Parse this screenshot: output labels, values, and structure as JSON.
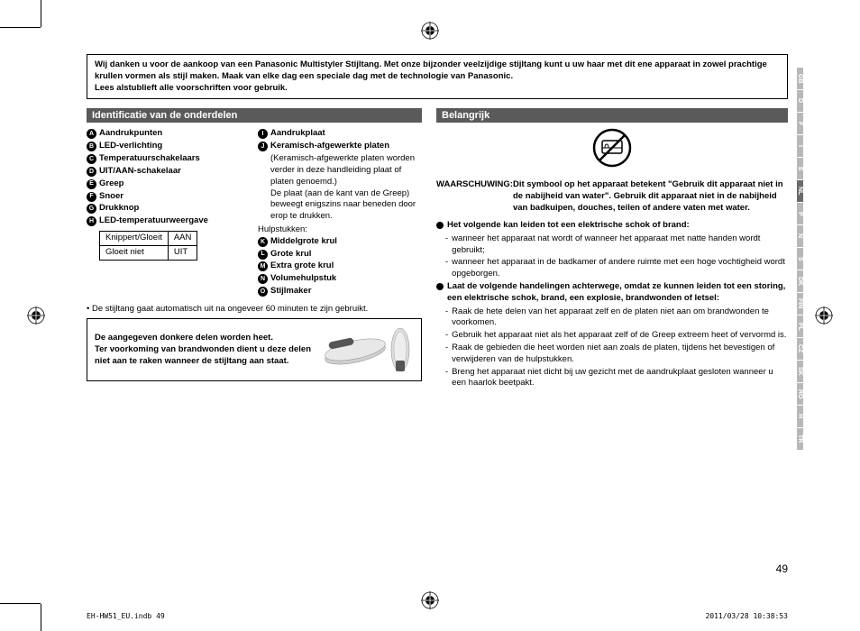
{
  "intro": "Wij danken u voor de aankoop van een Panasonic Multistyler Stijltang. Met onze bijzonder veelzijdige stijltang kunt u uw haar met dit ene apparaat in zowel prachtige krullen vormen als stijl maken. Maak van elke dag een speciale dag met de technologie van Panasonic.\nLees alstublieft alle voorschriften voor gebruik.",
  "section_left_title": "Identificatie van de onderdelen",
  "section_right_title": "Belangrijk",
  "parts_left": [
    {
      "l": "A",
      "t": "Aandrukpunten"
    },
    {
      "l": "B",
      "t": "LED-verlichting"
    },
    {
      "l": "C",
      "t": "Temperatuurschakelaars"
    },
    {
      "l": "D",
      "t": "UIT/AAN-schakelaar"
    },
    {
      "l": "E",
      "t": "Greep"
    },
    {
      "l": "F",
      "t": "Snoer"
    },
    {
      "l": "G",
      "t": "Drukknop"
    },
    {
      "l": "H",
      "t": "LED-temperatuurweergave"
    }
  ],
  "led_table": [
    [
      "Knippert/Gloeit",
      "AAN"
    ],
    [
      "Gloeit niet",
      "UIT"
    ]
  ],
  "parts_right_top": [
    {
      "l": "I",
      "t": "Aandrukplaat"
    },
    {
      "l": "J",
      "t": "Keramisch-afgewerkte platen"
    }
  ],
  "parts_right_sub1": "(Keramisch-afgewerkte platen worden verder in deze handleiding plaat of platen genoemd.)",
  "parts_right_sub2": "De plaat (aan de kant van de Greep) beweegt enigszins naar beneden door erop te drukken.",
  "hulp_label": "Hulpstukken:",
  "parts_right_bottom": [
    {
      "l": "K",
      "t": "Middelgrote krul"
    },
    {
      "l": "L",
      "t": "Grote krul"
    },
    {
      "l": "M",
      "t": "Extra grote krul"
    },
    {
      "l": "N",
      "t": "Volumehulpstuk"
    },
    {
      "l": "O",
      "t": "Stijlmaker"
    }
  ],
  "note": "• De stijltang gaat automatisch uit na ongeveer 60 minuten te zijn gebruikt.",
  "heat_text": "De aangegeven donkere delen worden heet.\nTer voorkoming van brandwonden dient u deze delen niet aan te raken wanneer de stijltang aan staat.",
  "warn_label": "WAARSCHUWING:",
  "warn_body": "Dit symbool op het apparaat betekent \"Gebruik dit apparaat niet in de nabijheid van water\". Gebruik dit apparaat niet in de nabijheid van badkuipen, douches, teilen of andere vaten met water.",
  "bullets": [
    {
      "head": "Het volgende kan leiden tot een elektrische schok of brand:",
      "dashes": [
        "wanneer het apparaat nat wordt of wanneer het apparaat met natte handen wordt gebruikt;",
        "wanneer het apparaat in de badkamer of andere ruimte met een hoge vochtigheid wordt opgeborgen."
      ]
    },
    {
      "head": "Laat de volgende handelingen achterwege, omdat ze kunnen leiden tot een storing, een elektrische schok, brand, een explosie, brandwonden of letsel:",
      "dashes": [
        "Raak de hete delen van het apparaat zelf en de platen niet aan om brandwonden te voorkomen.",
        "Gebruik het apparaat niet als het apparaat zelf of de Greep extreem heet of vervormd is.",
        "Raak de gebieden die heet worden niet aan zoals de platen, tijdens het bevestigen of verwijderen van de hulpstukken.",
        "Breng het apparaat niet dicht bij uw gezicht met de aandrukplaat gesloten wanneer u een haarlok beetpakt."
      ]
    }
  ],
  "page_num": "49",
  "lang_tabs": [
    "GB",
    "D",
    "F",
    "I",
    "E",
    "NL",
    "P",
    "N",
    "S",
    "DK",
    "FIN",
    "PL",
    "CZ",
    "SK",
    "RO",
    "H",
    "TR"
  ],
  "active_lang": "NL",
  "footer_left": "EH-HW51_EU.indb   49",
  "footer_right": "2011/03/28   10:38:53"
}
